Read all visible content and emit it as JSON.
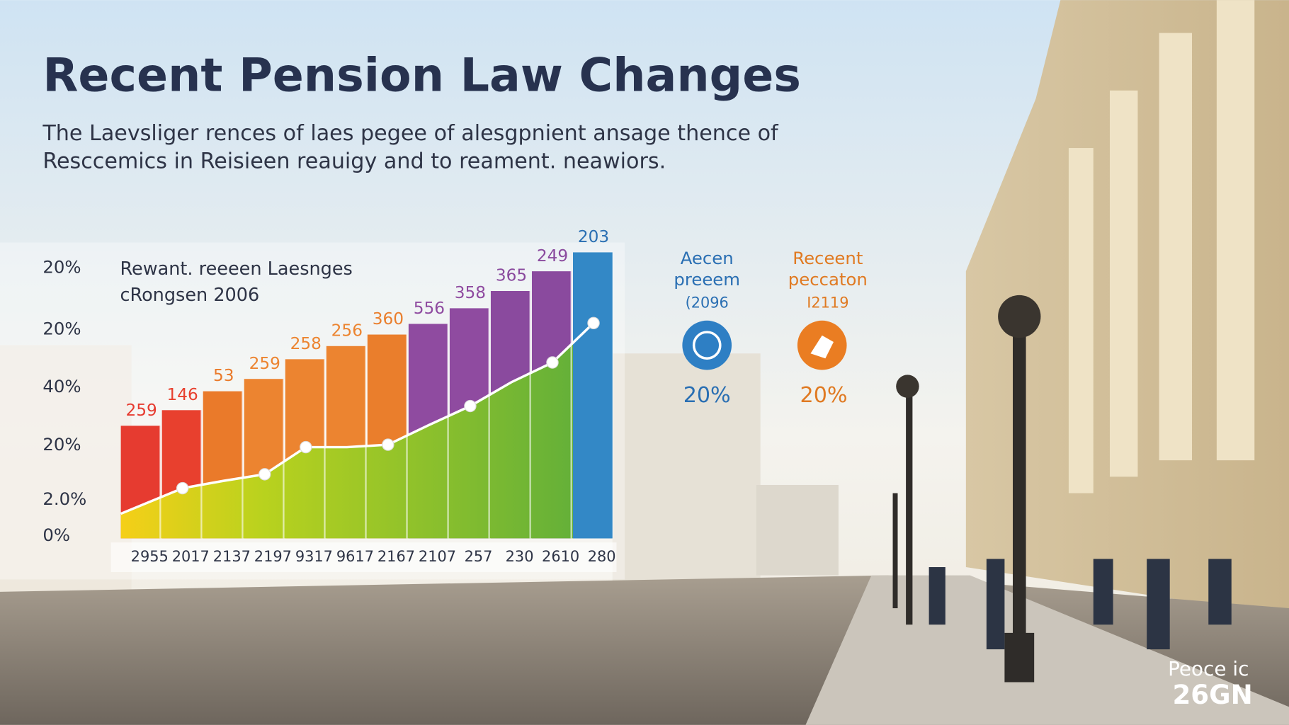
{
  "header": {
    "title": "Recent Pension Law Changes",
    "subtitle": [
      "The Laevsliger rences of laes pegee of alesgpnient ansage thence of",
      "Resccemics in Reisieen reauigy and to reament. neawiors."
    ]
  },
  "chart": {
    "y_labels": [
      "20%",
      "20%",
      "40%",
      "20%",
      "2.0%",
      "0%"
    ],
    "legend": [
      "Rewant. reeeen Laesnges",
      "cRongsen 2006"
    ],
    "bar_labels": [
      "259",
      "146",
      "53",
      "259",
      "258",
      "256",
      "360",
      "556",
      "358",
      "365",
      "249",
      "203"
    ],
    "x_labels": [
      "2955",
      "2017",
      "2137",
      "2197",
      "9317",
      "9617",
      "2167",
      "2107",
      "257",
      "230",
      "2610",
      "280"
    ]
  },
  "cards": [
    {
      "title": [
        "Aecen",
        "preeem"
      ],
      "year": "(2096",
      "value": "20%"
    },
    {
      "title": [
        "Receent",
        "peccaton"
      ],
      "year": "I2119",
      "value": "20%"
    }
  ],
  "watermark": [
    "Peoce ic",
    "26GN"
  ]
}
